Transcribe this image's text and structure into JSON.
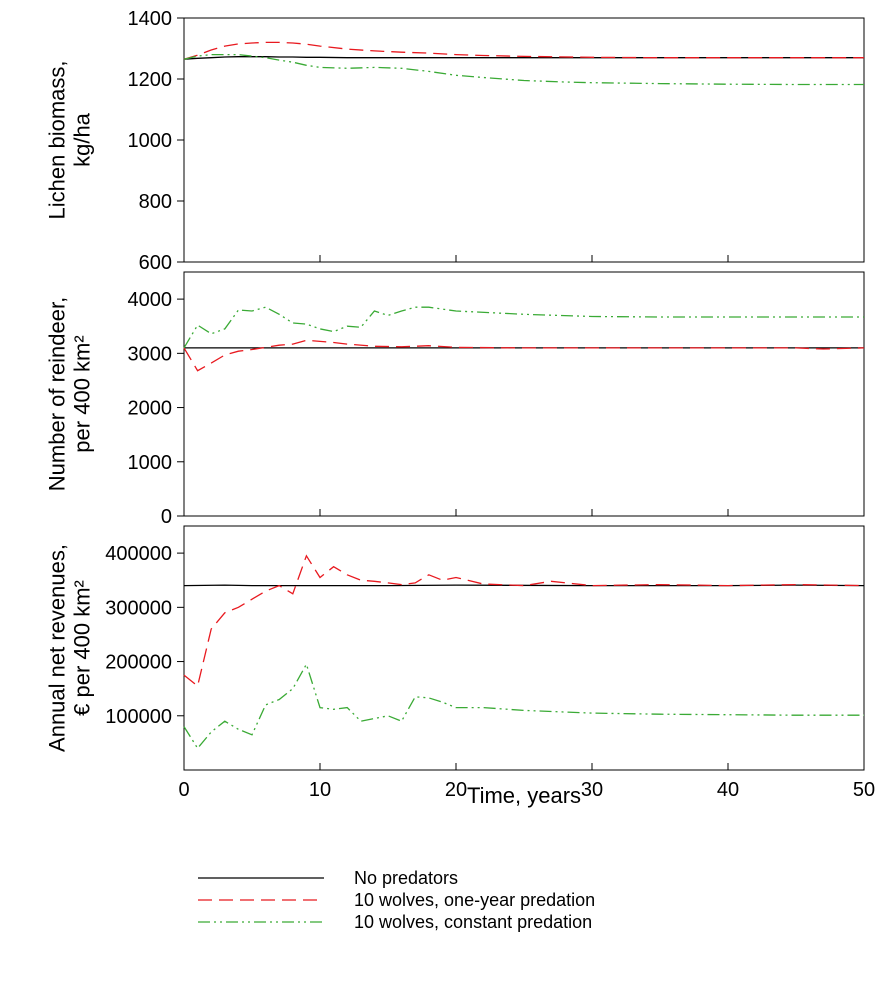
{
  "chart_data": {
    "type": "line",
    "xlabel": "Time, years",
    "xlim": [
      0,
      50
    ],
    "x_ticks": [
      0,
      10,
      20,
      30,
      40,
      50
    ],
    "legend": {
      "position": "bottom",
      "entries": [
        {
          "name": "No predators",
          "color": "#000000",
          "dash": "solid"
        },
        {
          "name": "10 wolves, one-year predation",
          "color": "#e8191f",
          "dash": "dashed"
        },
        {
          "name": "10 wolves, constant predation",
          "color": "#3aaa35",
          "dash": "dash-dot-dot"
        }
      ]
    },
    "panels": [
      {
        "ylabel_lines": [
          "Lichen biomass,",
          "kg/ha"
        ],
        "ylim": [
          600,
          1400
        ],
        "y_ticks": [
          600,
          800,
          1000,
          1200,
          1400
        ],
        "show_x_tick_labels": false,
        "series": [
          {
            "name": "No predators",
            "x": [
              0,
              1,
              2,
              3,
              4,
              5,
              6,
              7,
              8,
              9,
              10,
              12,
              14,
              16,
              18,
              20,
              25,
              30,
              35,
              40,
              45,
              50
            ],
            "y": [
              1265,
              1268,
              1270,
              1272,
              1273,
              1273,
              1273,
              1272,
              1272,
              1271,
              1271,
              1270,
              1270,
              1270,
              1270,
              1270,
              1270,
              1270,
              1270,
              1270,
              1270,
              1270
            ]
          },
          {
            "name": "10 wolves, one-year predation",
            "x": [
              0,
              1,
              2,
              3,
              4,
              5,
              6,
              7,
              8,
              9,
              10,
              12,
              14,
              16,
              18,
              20,
              22,
              25,
              30,
              35,
              40,
              45,
              50
            ],
            "y": [
              1265,
              1278,
              1295,
              1308,
              1315,
              1318,
              1320,
              1320,
              1318,
              1314,
              1308,
              1298,
              1292,
              1288,
              1285,
              1280,
              1277,
              1274,
              1271,
              1270,
              1270,
              1270,
              1270
            ]
          },
          {
            "name": "10 wolves, constant predation",
            "x": [
              0,
              1,
              2,
              3,
              4,
              5,
              6,
              7,
              8,
              9,
              10,
              12,
              14,
              16,
              18,
              20,
              22,
              25,
              28,
              30,
              35,
              40,
              45,
              50
            ],
            "y": [
              1265,
              1275,
              1280,
              1280,
              1280,
              1275,
              1270,
              1262,
              1255,
              1245,
              1238,
              1235,
              1238,
              1235,
              1225,
              1212,
              1205,
              1195,
              1190,
              1188,
              1185,
              1183,
              1182,
              1182
            ]
          }
        ]
      },
      {
        "ylabel_lines": [
          "Number of reindeer,",
          "per 400 km²"
        ],
        "ylim": [
          0,
          4500
        ],
        "y_ticks": [
          0,
          1000,
          2000,
          3000,
          4000
        ],
        "show_x_tick_labels": false,
        "series": [
          {
            "name": "No predators",
            "x": [
              0,
              5,
              10,
              15,
              20,
              25,
              30,
              35,
              40,
              45,
              50
            ],
            "y": [
              3100,
              3100,
              3100,
              3100,
              3100,
              3100,
              3100,
              3100,
              3100,
              3100,
              3100
            ]
          },
          {
            "name": "10 wolves, one-year predation",
            "x": [
              0,
              1,
              2,
              3,
              4,
              5,
              6,
              7,
              8,
              9,
              10,
              11,
              12,
              14,
              16,
              18,
              20,
              25,
              30,
              35,
              40,
              45,
              47,
              50
            ],
            "y": [
              3100,
              2680,
              2820,
              2970,
              3040,
              3070,
              3110,
              3150,
              3170,
              3240,
              3220,
              3200,
              3170,
              3130,
              3120,
              3140,
              3110,
              3100,
              3100,
              3100,
              3100,
              3100,
              3080,
              3100
            ]
          },
          {
            "name": "10 wolves, constant predation",
            "x": [
              0,
              1,
              2,
              3,
              4,
              5,
              6,
              7,
              8,
              9,
              10,
              11,
              12,
              13,
              14,
              15,
              16,
              17,
              18,
              20,
              25,
              30,
              35,
              40,
              45,
              50
            ],
            "y": [
              3100,
              3520,
              3360,
              3450,
              3800,
              3780,
              3850,
              3720,
              3560,
              3540,
              3450,
              3400,
              3500,
              3480,
              3780,
              3700,
              3780,
              3850,
              3850,
              3780,
              3720,
              3680,
              3670,
              3670,
              3670,
              3670
            ]
          }
        ]
      },
      {
        "ylabel_lines": [
          "Annual net revenues,",
          "€ per 400 km²"
        ],
        "ylim": [
          0,
          450000
        ],
        "y_ticks": [
          100000,
          200000,
          300000,
          400000
        ],
        "show_x_tick_labels": true,
        "series": [
          {
            "name": "No predators",
            "x": [
              0,
              3,
              5,
              10,
              15,
              20,
              30,
              40,
              45,
              50
            ],
            "y": [
              340000,
              341000,
              340000,
              340000,
              340000,
              341000,
              340000,
              340000,
              341000,
              340000
            ]
          },
          {
            "name": "10 wolves, one-year predation",
            "x": [
              0,
              1,
              2,
              3,
              4,
              5,
              6,
              7,
              8,
              9,
              10,
              11,
              12,
              13,
              14,
              15,
              16,
              17,
              18,
              19,
              20,
              22,
              25,
              27,
              30,
              35,
              40,
              45,
              50
            ],
            "y": [
              175000,
              155000,
              260000,
              290000,
              300000,
              315000,
              330000,
              340000,
              325000,
              395000,
              355000,
              375000,
              360000,
              350000,
              348000,
              345000,
              342000,
              345000,
              360000,
              350000,
              355000,
              343000,
              340000,
              348000,
              340000,
              342000,
              340000,
              342000,
              340000
            ]
          },
          {
            "name": "10 wolves, constant predation",
            "x": [
              0,
              1,
              2,
              3,
              4,
              5,
              6,
              7,
              8,
              9,
              10,
              11,
              12,
              13,
              14,
              15,
              16,
              17,
              18,
              19,
              20,
              22,
              25,
              30,
              35,
              40,
              45,
              50
            ],
            "y": [
              80000,
              40000,
              70000,
              90000,
              75000,
              65000,
              120000,
              130000,
              150000,
              195000,
              115000,
              112000,
              115000,
              90000,
              95000,
              100000,
              90000,
              135000,
              133000,
              125000,
              115000,
              115000,
              110000,
              105000,
              103000,
              102000,
              101000,
              101000
            ]
          }
        ]
      }
    ]
  }
}
